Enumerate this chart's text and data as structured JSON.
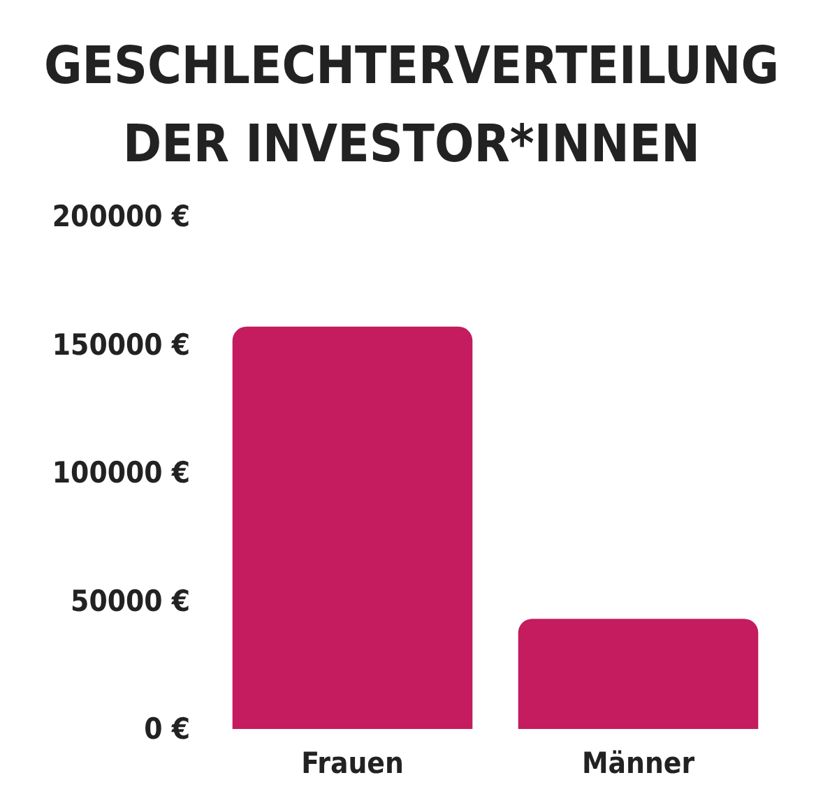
{
  "chart_data": {
    "type": "bar",
    "title": "GESCHLECHTERVERTEILUNG\nDER INVESTOR*INNEN",
    "categories": [
      "Frauen",
      "Männer"
    ],
    "values": [
      157000,
      43000
    ],
    "color": "#c41c5e",
    "ylim": [
      0,
      200000
    ],
    "yticks": [
      {
        "value": 0,
        "label": "0 €"
      },
      {
        "value": 50000,
        "label": "50000 €"
      },
      {
        "value": 100000,
        "label": "100000 €"
      },
      {
        "value": 150000,
        "label": "150000 €"
      },
      {
        "value": 200000,
        "label": "200000 €"
      }
    ],
    "grid": false
  }
}
